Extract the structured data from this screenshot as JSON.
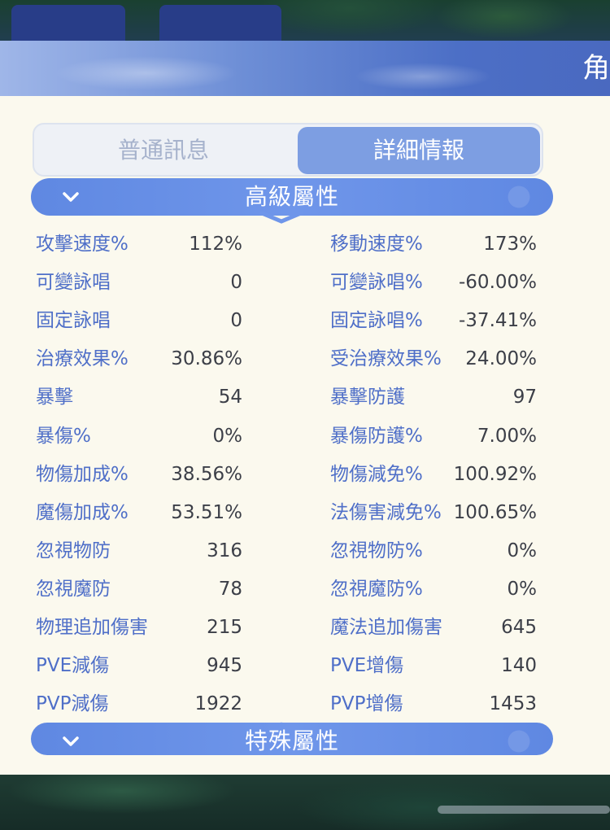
{
  "header": {
    "title": "角"
  },
  "tabs": [
    {
      "label": "普通訊息",
      "active": false
    },
    {
      "label": "詳細情報",
      "active": true
    }
  ],
  "sections": {
    "advanced": {
      "title": "高級屬性"
    },
    "special": {
      "title": "特殊屬性"
    }
  },
  "stats_left": [
    {
      "label": "攻擊速度%",
      "value": "112%"
    },
    {
      "label": "可變詠唱",
      "value": "0"
    },
    {
      "label": "固定詠唱",
      "value": "0"
    },
    {
      "label": "治療效果%",
      "value": "30.86%"
    },
    {
      "label": "暴擊",
      "value": "54"
    },
    {
      "label": "暴傷%",
      "value": "0%"
    },
    {
      "label": "物傷加成%",
      "value": "38.56%"
    },
    {
      "label": "魔傷加成%",
      "value": "53.51%"
    },
    {
      "label": "忽視物防",
      "value": "316"
    },
    {
      "label": "忽視魔防",
      "value": "78"
    },
    {
      "label": "物理追加傷害",
      "value": "215"
    },
    {
      "label": "PVE減傷",
      "value": "945"
    },
    {
      "label": "PVP減傷",
      "value": "1922"
    }
  ],
  "stats_right": [
    {
      "label": "移動速度%",
      "value": "173%"
    },
    {
      "label": "可變詠唱%",
      "value": "-60.00%"
    },
    {
      "label": "固定詠唱%",
      "value": "-37.41%"
    },
    {
      "label": "受治療效果%",
      "value": "24.00%"
    },
    {
      "label": "暴擊防護",
      "value": "97"
    },
    {
      "label": "暴傷防護%",
      "value": "7.00%"
    },
    {
      "label": "物傷減免%",
      "value": "100.92%"
    },
    {
      "label": "法傷害減免%",
      "value": "100.65%"
    },
    {
      "label": "忽視物防%",
      "value": "0%"
    },
    {
      "label": "忽視魔防%",
      "value": "0%"
    },
    {
      "label": "魔法追加傷害",
      "value": "645"
    },
    {
      "label": "PVE增傷",
      "value": "140"
    },
    {
      "label": "PVP增傷",
      "value": "1453"
    }
  ],
  "colors": {
    "label": "#4f6fc8",
    "value": "#3c3f48",
    "accent": "#6f96ea",
    "panel": "#fbf9ee"
  }
}
